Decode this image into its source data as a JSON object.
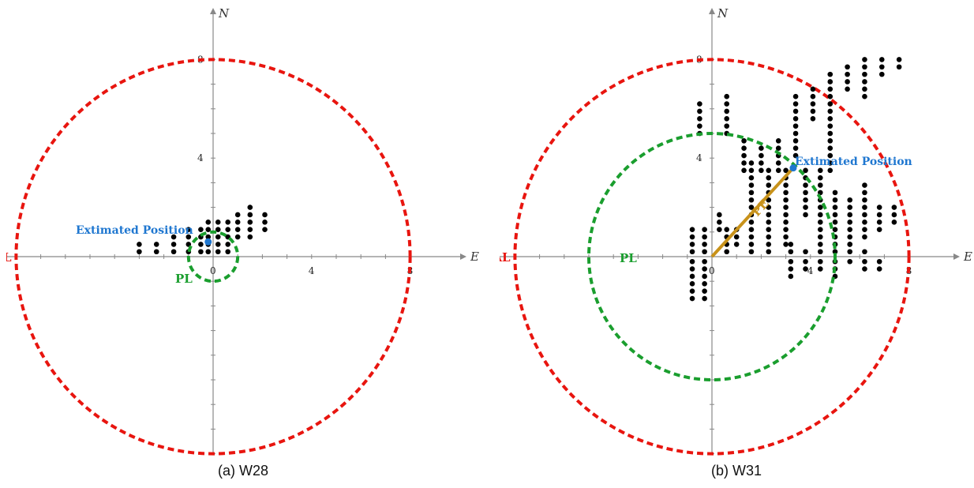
{
  "chart_data": [
    {
      "type": "scatter",
      "caption": "(a) W28",
      "x_axis_label": "E",
      "y_axis_label": "N",
      "xlim": [
        -8,
        8
      ],
      "ylim": [
        -8,
        8
      ],
      "x_ticks": [
        {
          "value": 0,
          "label": "0"
        },
        {
          "value": 4,
          "label": "4"
        },
        {
          "value": 8,
          "label": "8"
        }
      ],
      "y_ticks": [
        {
          "value": 4,
          "label": "4"
        },
        {
          "value": 8,
          "label": "8"
        }
      ],
      "grid": false,
      "colors": {
        "al": "#e8150f",
        "pl": "#1a9e2e",
        "estimate": "#1f77d0",
        "points": "#000000",
        "axis": "#888888"
      },
      "alert_limit": {
        "label": "AL",
        "radius": 8
      },
      "protection_level": {
        "label": "PL",
        "radius": 1
      },
      "estimated_position": {
        "label": "Extimated Position",
        "x": -0.2,
        "y": 0.6
      },
      "points": [
        [
          -3.0,
          0.2
        ],
        [
          -3.0,
          0.5
        ],
        [
          -2.3,
          0.2
        ],
        [
          -2.3,
          0.5
        ],
        [
          -1.6,
          0.2
        ],
        [
          -1.6,
          0.5
        ],
        [
          -1.6,
          0.8
        ],
        [
          -1.0,
          0.2
        ],
        [
          -1.0,
          0.5
        ],
        [
          -1.0,
          0.8
        ],
        [
          -1.0,
          1.1
        ],
        [
          -0.5,
          0.2
        ],
        [
          -0.5,
          0.5
        ],
        [
          -0.5,
          0.8
        ],
        [
          -0.5,
          1.1
        ],
        [
          -0.2,
          0.2
        ],
        [
          -0.2,
          0.5
        ],
        [
          -0.2,
          0.8
        ],
        [
          -0.2,
          1.1
        ],
        [
          -0.2,
          1.4
        ],
        [
          0.2,
          0.2
        ],
        [
          0.2,
          0.5
        ],
        [
          0.2,
          0.8
        ],
        [
          0.2,
          1.1
        ],
        [
          0.2,
          1.4
        ],
        [
          0.6,
          0.2
        ],
        [
          0.6,
          0.5
        ],
        [
          0.6,
          0.8
        ],
        [
          0.6,
          1.1
        ],
        [
          0.6,
          1.4
        ],
        [
          1.0,
          0.8
        ],
        [
          1.0,
          1.1
        ],
        [
          1.0,
          1.4
        ],
        [
          1.0,
          1.7
        ],
        [
          1.5,
          0.8
        ],
        [
          1.5,
          1.1
        ],
        [
          1.5,
          1.4
        ],
        [
          1.5,
          1.7
        ],
        [
          1.5,
          2.0
        ],
        [
          2.1,
          1.1
        ],
        [
          2.1,
          1.4
        ],
        [
          2.1,
          1.7
        ]
      ]
    },
    {
      "type": "scatter",
      "caption": "(b) W31",
      "x_axis_label": "E",
      "y_axis_label": "N",
      "xlim": [
        -8,
        8
      ],
      "ylim": [
        -8,
        8
      ],
      "x_ticks": [
        {
          "value": 0,
          "label": "0"
        },
        {
          "value": 4,
          "label": "4"
        },
        {
          "value": 8,
          "label": "8"
        }
      ],
      "y_ticks": [
        {
          "value": 4,
          "label": "4"
        },
        {
          "value": 8,
          "label": "8"
        }
      ],
      "grid": false,
      "colors": {
        "al": "#e8150f",
        "pl": "#1a9e2e",
        "pe": "#c8921a",
        "estimate": "#1f77d0",
        "points": "#000000",
        "axis": "#888888"
      },
      "alert_limit": {
        "label": "AL",
        "radius": 8
      },
      "protection_level": {
        "label": "PL",
        "radius": 5
      },
      "protection_error": {
        "label": "PE",
        "from": [
          0,
          0
        ],
        "to": [
          3.3,
          3.6
        ]
      },
      "estimated_position": {
        "label": "Extimated Position",
        "x": 3.3,
        "y": 3.6
      },
      "points": [
        [
          -0.8,
          -1.7
        ],
        [
          -0.8,
          -1.4
        ],
        [
          -0.8,
          -1.1
        ],
        [
          -0.8,
          -0.8
        ],
        [
          -0.8,
          -0.5
        ],
        [
          -0.8,
          -0.2
        ],
        [
          -0.8,
          0.2
        ],
        [
          -0.8,
          0.5
        ],
        [
          -0.8,
          0.8
        ],
        [
          -0.8,
          1.1
        ],
        [
          -0.3,
          -1.7
        ],
        [
          -0.3,
          -1.4
        ],
        [
          -0.3,
          -1.1
        ],
        [
          -0.3,
          -0.8
        ],
        [
          -0.3,
          -0.5
        ],
        [
          -0.3,
          -0.2
        ],
        [
          -0.3,
          0.2
        ],
        [
          -0.3,
          0.5
        ],
        [
          -0.3,
          0.8
        ],
        [
          -0.3,
          1.1
        ],
        [
          0.3,
          1.1
        ],
        [
          0.3,
          1.4
        ],
        [
          0.3,
          1.7
        ],
        [
          0.6,
          0.2
        ],
        [
          0.6,
          0.5
        ],
        [
          0.6,
          0.8
        ],
        [
          0.6,
          1.1
        ],
        [
          1.0,
          0.5
        ],
        [
          1.0,
          0.8
        ],
        [
          1.0,
          1.1
        ],
        [
          1.6,
          0.2
        ],
        [
          1.6,
          0.5
        ],
        [
          1.6,
          0.8
        ],
        [
          1.6,
          1.1
        ],
        [
          1.6,
          1.4
        ],
        [
          1.6,
          1.7
        ],
        [
          1.6,
          2.0
        ],
        [
          1.6,
          2.3
        ],
        [
          1.6,
          2.6
        ],
        [
          1.6,
          2.9
        ],
        [
          1.6,
          3.2
        ],
        [
          1.6,
          3.5
        ],
        [
          1.6,
          3.8
        ],
        [
          2.3,
          0.2
        ],
        [
          2.3,
          0.5
        ],
        [
          2.3,
          0.8
        ],
        [
          2.3,
          1.1
        ],
        [
          2.3,
          1.4
        ],
        [
          2.3,
          1.7
        ],
        [
          2.3,
          2.0
        ],
        [
          2.3,
          2.3
        ],
        [
          2.3,
          2.6
        ],
        [
          2.3,
          2.9
        ],
        [
          2.3,
          3.2
        ],
        [
          2.3,
          3.5
        ],
        [
          3.0,
          0.5
        ],
        [
          3.0,
          0.8
        ],
        [
          3.0,
          1.1
        ],
        [
          3.0,
          1.4
        ],
        [
          3.0,
          1.7
        ],
        [
          3.0,
          2.0
        ],
        [
          3.0,
          2.3
        ],
        [
          3.0,
          2.6
        ],
        [
          3.0,
          2.9
        ],
        [
          3.0,
          3.2
        ],
        [
          3.0,
          3.5
        ],
        [
          3.8,
          1.7
        ],
        [
          3.8,
          2.0
        ],
        [
          3.8,
          2.3
        ],
        [
          3.8,
          2.6
        ],
        [
          3.8,
          2.9
        ],
        [
          3.8,
          3.2
        ],
        [
          3.8,
          3.5
        ],
        [
          4.4,
          0.5
        ],
        [
          4.4,
          0.8
        ],
        [
          4.4,
          1.1
        ],
        [
          4.4,
          1.4
        ],
        [
          4.4,
          1.7
        ],
        [
          4.4,
          2.0
        ],
        [
          4.4,
          2.3
        ],
        [
          4.4,
          2.6
        ],
        [
          4.4,
          2.9
        ],
        [
          4.4,
          3.2
        ],
        [
          4.4,
          3.5
        ],
        [
          5.0,
          0.5
        ],
        [
          5.0,
          0.8
        ],
        [
          5.0,
          1.1
        ],
        [
          5.0,
          1.4
        ],
        [
          5.0,
          1.7
        ],
        [
          5.0,
          2.0
        ],
        [
          5.0,
          2.3
        ],
        [
          5.0,
          2.6
        ],
        [
          5.6,
          0.5
        ],
        [
          5.6,
          0.8
        ],
        [
          5.6,
          1.1
        ],
        [
          5.6,
          1.4
        ],
        [
          5.6,
          1.7
        ],
        [
          5.6,
          2.0
        ],
        [
          5.6,
          2.3
        ],
        [
          6.2,
          0.8
        ],
        [
          6.2,
          1.1
        ],
        [
          6.2,
          1.4
        ],
        [
          6.2,
          1.7
        ],
        [
          6.2,
          2.0
        ],
        [
          6.2,
          2.3
        ],
        [
          6.2,
          2.6
        ],
        [
          6.2,
          2.9
        ],
        [
          6.8,
          1.1
        ],
        [
          6.8,
          1.4
        ],
        [
          6.8,
          1.7
        ],
        [
          6.8,
          2.0
        ],
        [
          7.4,
          1.4
        ],
        [
          7.4,
          1.7
        ],
        [
          7.4,
          2.0
        ],
        [
          3.2,
          -0.8
        ],
        [
          3.2,
          -0.5
        ],
        [
          3.2,
          -0.2
        ],
        [
          3.2,
          0.2
        ],
        [
          3.2,
          0.5
        ],
        [
          5.0,
          -0.8
        ],
        [
          5.0,
          -0.5
        ],
        [
          5.0,
          -0.2
        ],
        [
          5.0,
          0.2
        ],
        [
          5.0,
          0.5
        ],
        [
          5.6,
          -0.2
        ],
        [
          5.6,
          0.2
        ],
        [
          5.6,
          0.5
        ],
        [
          6.2,
          -0.5
        ],
        [
          6.2,
          -0.2
        ],
        [
          6.2,
          0.2
        ],
        [
          6.8,
          -0.5
        ],
        [
          6.8,
          -0.2
        ],
        [
          3.8,
          -0.5
        ],
        [
          3.8,
          -0.2
        ],
        [
          3.8,
          0.2
        ],
        [
          4.4,
          -0.5
        ],
        [
          4.4,
          -0.2
        ],
        [
          4.4,
          0.2
        ],
        [
          0.6,
          5.0
        ],
        [
          0.6,
          5.3
        ],
        [
          0.6,
          5.6
        ],
        [
          0.6,
          5.9
        ],
        [
          0.6,
          6.2
        ],
        [
          0.6,
          6.5
        ],
        [
          -0.5,
          5.0
        ],
        [
          -0.5,
          5.3
        ],
        [
          -0.5,
          5.6
        ],
        [
          -0.5,
          5.9
        ],
        [
          -0.5,
          6.2
        ],
        [
          1.3,
          3.5
        ],
        [
          1.3,
          3.8
        ],
        [
          1.3,
          4.1
        ],
        [
          1.3,
          4.4
        ],
        [
          1.3,
          4.7
        ],
        [
          2.0,
          3.5
        ],
        [
          2.0,
          3.8
        ],
        [
          2.0,
          4.1
        ],
        [
          2.0,
          4.4
        ],
        [
          2.7,
          3.5
        ],
        [
          2.7,
          3.8
        ],
        [
          2.7,
          4.1
        ],
        [
          2.7,
          4.4
        ],
        [
          2.7,
          4.7
        ],
        [
          3.4,
          4.1
        ],
        [
          3.4,
          4.4
        ],
        [
          3.4,
          4.7
        ],
        [
          3.4,
          5.0
        ],
        [
          3.4,
          5.3
        ],
        [
          3.4,
          5.6
        ],
        [
          3.4,
          5.9
        ],
        [
          3.4,
          6.2
        ],
        [
          3.4,
          6.5
        ],
        [
          4.1,
          5.6
        ],
        [
          4.1,
          5.9
        ],
        [
          4.1,
          6.2
        ],
        [
          4.1,
          6.5
        ],
        [
          4.1,
          6.8
        ],
        [
          4.8,
          3.5
        ],
        [
          4.8,
          3.8
        ],
        [
          4.8,
          4.1
        ],
        [
          4.8,
          4.4
        ],
        [
          4.8,
          4.7
        ],
        [
          4.8,
          5.0
        ],
        [
          4.8,
          5.3
        ],
        [
          4.8,
          5.6
        ],
        [
          4.8,
          5.9
        ],
        [
          4.8,
          6.2
        ],
        [
          4.8,
          6.5
        ],
        [
          4.8,
          6.8
        ],
        [
          4.8,
          7.1
        ],
        [
          4.8,
          7.4
        ],
        [
          5.5,
          6.8
        ],
        [
          5.5,
          7.1
        ],
        [
          5.5,
          7.4
        ],
        [
          5.5,
          7.7
        ],
        [
          6.2,
          6.5
        ],
        [
          6.2,
          6.8
        ],
        [
          6.2,
          7.1
        ],
        [
          6.2,
          7.4
        ],
        [
          6.2,
          7.7
        ],
        [
          6.2,
          8.0
        ],
        [
          6.9,
          7.4
        ],
        [
          6.9,
          7.7
        ],
        [
          6.9,
          8.0
        ],
        [
          7.6,
          7.7
        ],
        [
          7.6,
          8.0
        ]
      ]
    }
  ]
}
